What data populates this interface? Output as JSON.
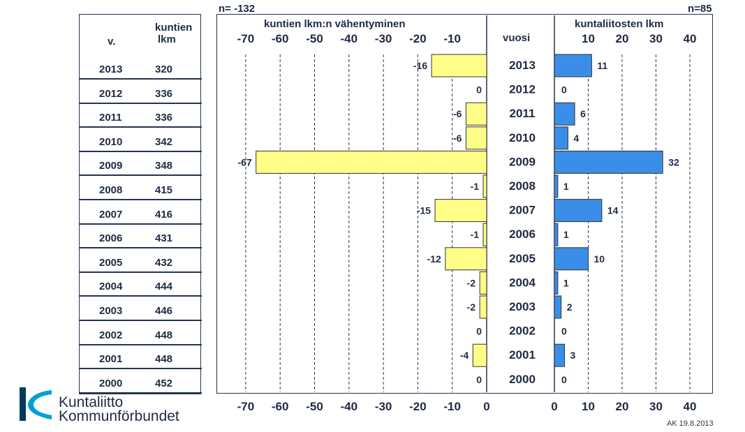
{
  "table": {
    "header_year": "v.",
    "header_count_1": "kuntien",
    "header_count_2": "lkm",
    "rows": [
      {
        "year": "2013",
        "count": "320"
      },
      {
        "year": "2012",
        "count": "336"
      },
      {
        "year": "2011",
        "count": "336"
      },
      {
        "year": "2010",
        "count": "342"
      },
      {
        "year": "2009",
        "count": "348"
      },
      {
        "year": "2008",
        "count": "415"
      },
      {
        "year": "2007",
        "count": "416"
      },
      {
        "year": "2006",
        "count": "431"
      },
      {
        "year": "2005",
        "count": "432"
      },
      {
        "year": "2004",
        "count": "444"
      },
      {
        "year": "2003",
        "count": "446"
      },
      {
        "year": "2002",
        "count": "448"
      },
      {
        "year": "2001",
        "count": "448"
      },
      {
        "year": "2000",
        "count": "452"
      }
    ]
  },
  "chart_data": [
    {
      "type": "bar",
      "orientation": "horizontal",
      "title": "kuntien lkm:n vähentyminen",
      "n_label": "n= -132",
      "categories": [
        "2013",
        "2012",
        "2011",
        "2010",
        "2009",
        "2008",
        "2007",
        "2006",
        "2005",
        "2004",
        "2003",
        "2002",
        "2001",
        "2000"
      ],
      "values": [
        -16,
        0,
        -6,
        -6,
        -67,
        -1,
        -15,
        -1,
        -12,
        -2,
        -2,
        0,
        -4,
        0
      ],
      "xlim": [
        -80,
        0
      ],
      "ticks_top": [
        "-70",
        "-60",
        "-50",
        "-40",
        "-30",
        "-20",
        "-10"
      ],
      "ticks_bottom": [
        "-70",
        "-60",
        "-50",
        "-40",
        "-30",
        "-20",
        "-10",
        "0"
      ],
      "grid": "vertical dashed",
      "color": "#ffff88"
    },
    {
      "type": "bar",
      "orientation": "horizontal",
      "title": "kuntaliitosten lkm",
      "n_label": "n=85",
      "categories": [
        "2013",
        "2012",
        "2011",
        "2010",
        "2009",
        "2008",
        "2007",
        "2006",
        "2005",
        "2004",
        "2003",
        "2002",
        "2001",
        "2000"
      ],
      "values": [
        11,
        0,
        6,
        4,
        32,
        1,
        14,
        1,
        10,
        1,
        2,
        0,
        3,
        0
      ],
      "xlim": [
        0,
        45
      ],
      "ticks_top": [
        "10",
        "20",
        "30",
        "40"
      ],
      "ticks_bottom": [
        "0",
        "10",
        "20",
        "30",
        "40"
      ],
      "grid": "vertical dashed",
      "color": "#3a8ee8"
    }
  ],
  "center": {
    "header": "vuosi"
  },
  "logo": {
    "line1": "Kuntaliitto",
    "line2": "Kommunförbundet",
    "colors": {
      "dark": "#003b5c",
      "light": "#00a0d6"
    }
  },
  "footer": "AK 19.8.2013"
}
